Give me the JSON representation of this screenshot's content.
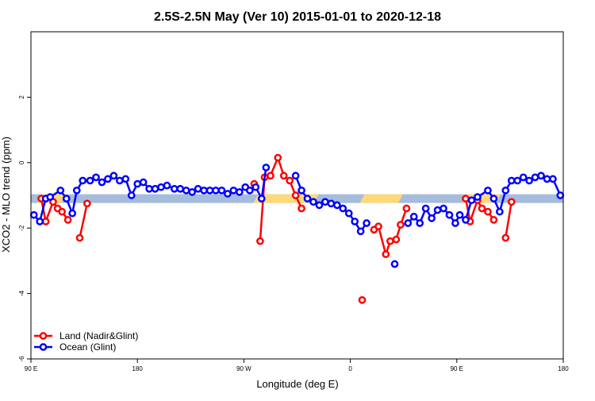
{
  "chart_data": {
    "type": "line",
    "title": "2.5S-2.5N May (Ver 10)   2015-01-01 to 2020-12-18",
    "xlabel": "Longitude (deg E)",
    "ylabel": "XCO2 - MLO trend (ppm)",
    "xlim": [
      90,
      450
    ],
    "ylim": [
      -6,
      4
    ],
    "x_ticks": [
      {
        "value": 90,
        "label": "90 E"
      },
      {
        "value": 162,
        "label": "180"
      },
      {
        "value": 234,
        "label": "90 W"
      },
      {
        "value": 306,
        "label": "0"
      },
      {
        "value": 378,
        "label": "90 E"
      },
      {
        "value": 450,
        "label": "180"
      }
    ],
    "y_ticks": [
      {
        "value": -6,
        "label": "-6"
      },
      {
        "value": -4,
        "label": "-4"
      },
      {
        "value": -2,
        "label": "-2"
      },
      {
        "value": 0,
        "label": "0"
      },
      {
        "value": 2,
        "label": "2"
      }
    ],
    "legend_position": "bottom-left",
    "band": {
      "y": -1.1,
      "base_color": "#a5bcdc",
      "highlight_color": "#fdd97a",
      "highlight_ranges": [
        [
          96,
          112
        ],
        [
          242,
          283
        ],
        [
          314,
          340
        ],
        [
          383,
          406
        ]
      ]
    },
    "series": [
      {
        "name": "Land (Nadir&Glint)",
        "color": "#ff0000",
        "segments": [
          [
            [
              97,
              -1.1
            ],
            [
              100,
              -1.8
            ],
            [
              105,
              -1.2
            ],
            [
              108,
              -1.4
            ],
            [
              111,
              -1.5
            ],
            [
              115,
              -1.75
            ]
          ],
          [
            [
              123,
              -2.3
            ],
            [
              128,
              -1.25
            ]
          ],
          [
            [
              241,
              -0.65
            ]
          ],
          [
            [
              245,
              -2.4
            ],
            [
              248,
              -0.45
            ],
            [
              252,
              -0.4
            ],
            [
              257,
              0.15
            ],
            [
              261,
              -0.4
            ],
            [
              265,
              -0.55
            ],
            [
              269,
              -1.0
            ],
            [
              273,
              -1.4
            ]
          ],
          [
            [
              314,
              -4.2
            ]
          ],
          [
            [
              322,
              -2.05
            ],
            [
              325,
              -1.95
            ],
            [
              330,
              -2.8
            ],
            [
              333,
              -2.4
            ],
            [
              337,
              -2.35
            ],
            [
              340,
              -1.9
            ],
            [
              344,
              -1.4
            ]
          ],
          [
            [
              384,
              -1.1
            ],
            [
              387,
              -1.8
            ],
            [
              392,
              -1.15
            ],
            [
              395,
              -1.4
            ],
            [
              399,
              -1.5
            ],
            [
              403,
              -1.75
            ]
          ],
          [
            [
              411,
              -2.3
            ],
            [
              415,
              -1.2
            ]
          ]
        ]
      },
      {
        "name": "Ocean (Glint)",
        "color": "#0000ff",
        "segments": [
          [
            [
              92,
              -1.6
            ],
            [
              96,
              -1.8
            ],
            [
              100,
              -1.1
            ],
            [
              103,
              -1.05
            ],
            [
              110,
              -0.85
            ],
            [
              114,
              -1.1
            ],
            [
              118,
              -1.55
            ],
            [
              121,
              -0.85
            ],
            [
              125,
              -0.55
            ],
            [
              130,
              -0.55
            ],
            [
              134,
              -0.45
            ],
            [
              138,
              -0.6
            ],
            [
              142,
              -0.5
            ],
            [
              146,
              -0.4
            ],
            [
              150,
              -0.55
            ],
            [
              154,
              -0.5
            ],
            [
              158,
              -1.0
            ],
            [
              162,
              -0.65
            ],
            [
              166,
              -0.6
            ],
            [
              170,
              -0.8
            ],
            [
              174,
              -0.8
            ],
            [
              178,
              -0.75
            ],
            [
              182,
              -0.7
            ],
            [
              187,
              -0.8
            ],
            [
              191,
              -0.8
            ],
            [
              195,
              -0.85
            ],
            [
              199,
              -0.9
            ],
            [
              203,
              -0.8
            ],
            [
              207,
              -0.85
            ],
            [
              211,
              -0.85
            ],
            [
              215,
              -0.85
            ],
            [
              219,
              -0.85
            ],
            [
              223,
              -0.95
            ],
            [
              227,
              -0.85
            ],
            [
              231,
              -0.9
            ],
            [
              235,
              -0.75
            ],
            [
              238,
              -0.85
            ],
            [
              242,
              -0.75
            ],
            [
              246,
              -1.1
            ],
            [
              249,
              -0.15
            ]
          ],
          [
            [
              269,
              -0.4
            ],
            [
              273,
              -0.85
            ],
            [
              277,
              -1.1
            ],
            [
              281,
              -1.2
            ],
            [
              285,
              -1.3
            ],
            [
              289,
              -1.2
            ],
            [
              293,
              -1.25
            ],
            [
              297,
              -1.3
            ],
            [
              301,
              -1.4
            ],
            [
              305,
              -1.55
            ],
            [
              309,
              -1.8
            ],
            [
              313,
              -2.1
            ],
            [
              317,
              -1.85
            ]
          ],
          [
            [
              336,
              -3.1
            ]
          ],
          [
            [
              345,
              -1.85
            ],
            [
              349,
              -1.65
            ],
            [
              353,
              -1.85
            ],
            [
              357,
              -1.4
            ],
            [
              361,
              -1.7
            ],
            [
              365,
              -1.45
            ],
            [
              369,
              -1.4
            ],
            [
              373,
              -1.6
            ],
            [
              377,
              -1.85
            ],
            [
              380,
              -1.6
            ],
            [
              384,
              -1.75
            ],
            [
              388,
              -1.15
            ],
            [
              392,
              -1.05
            ],
            [
              399,
              -0.85
            ],
            [
              403,
              -1.1
            ],
            [
              407,
              -1.5
            ],
            [
              411,
              -0.85
            ],
            [
              415,
              -0.55
            ],
            [
              419,
              -0.55
            ],
            [
              423,
              -0.45
            ],
            [
              427,
              -0.55
            ],
            [
              431,
              -0.45
            ],
            [
              435,
              -0.4
            ],
            [
              439,
              -0.5
            ],
            [
              443,
              -0.5
            ],
            [
              448,
              -1.0
            ]
          ]
        ]
      }
    ]
  }
}
